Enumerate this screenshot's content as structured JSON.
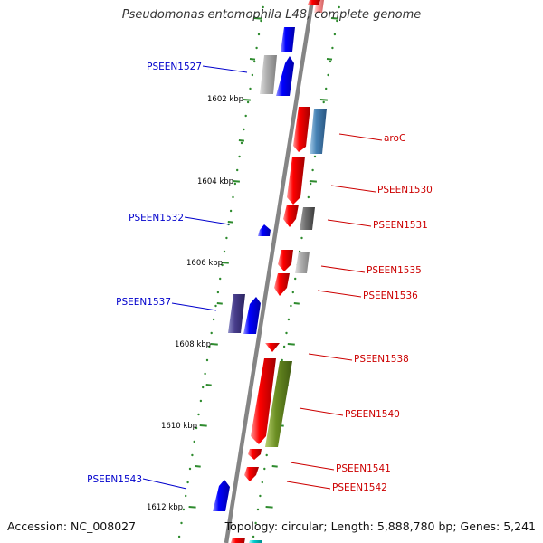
{
  "header": {
    "title": "Pseudomonas entomophila L48, complete genome"
  },
  "footer": {
    "accession": "Accession: NC_008027",
    "topology": "Topology: circular; Length: 5,888,780 bp; Genes: 5,241"
  },
  "colors": {
    "axis": "#858585",
    "tick": "#2e8b2e",
    "gc_dots": "#2e8b2e",
    "label_forward": "#0000cc",
    "label_reverse": "#cc0000",
    "scale_text": "#000000"
  },
  "scale": {
    "unit": "kbp",
    "ticks": [
      {
        "label": "1602 kbp"
      },
      {
        "label": "1604 kbp"
      },
      {
        "label": "1606 kbp"
      },
      {
        "label": "1608 kbp"
      },
      {
        "label": "1610 kbp"
      },
      {
        "label": "1612 kbp"
      }
    ]
  },
  "gene_labels": {
    "forward": [
      "PSEEN1527",
      "PSEEN1532",
      "PSEEN1537",
      "PSEEN1543"
    ],
    "reverse": [
      "aroC",
      "PSEEN1530",
      "PSEEN1531",
      "PSEEN1535",
      "PSEEN1536",
      "PSEEN1538",
      "PSEEN1540",
      "PSEEN1541",
      "PSEEN1542"
    ]
  }
}
